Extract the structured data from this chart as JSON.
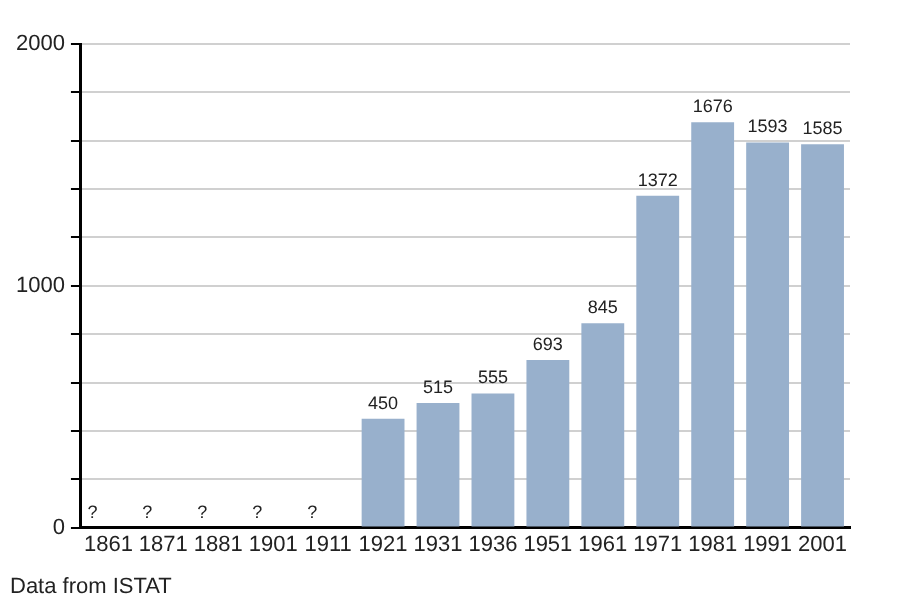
{
  "chart_data": {
    "type": "bar",
    "categories": [
      "1861",
      "1871",
      "1881",
      "1901",
      "1911",
      "1921",
      "1931",
      "1936",
      "1951",
      "1961",
      "1971",
      "1981",
      "1991",
      "2001"
    ],
    "values": [
      null,
      null,
      null,
      null,
      null,
      450,
      515,
      555,
      693,
      845,
      1372,
      1676,
      1593,
      1585
    ],
    "value_labels": [
      "?",
      "?",
      "?",
      "?",
      "?",
      "450",
      "515",
      "555",
      "693",
      "845",
      "1372",
      "1676",
      "1593",
      "1585"
    ],
    "color": "#98b0cc",
    "ylim": [
      0,
      2000
    ],
    "yticks": [
      0,
      {
        "value": 200,
        "label": null
      },
      {
        "value": 400,
        "label": null
      },
      {
        "value": 600,
        "label": null
      },
      {
        "value": 800,
        "label": null
      },
      1000,
      {
        "value": 1200,
        "label": null
      },
      {
        "value": 1400,
        "label": null
      },
      {
        "value": 1600,
        "label": null
      },
      {
        "value": 1800,
        "label": null
      },
      2000
    ],
    "grid": true,
    "annotations": [
      "Data from ISTAT"
    ]
  }
}
